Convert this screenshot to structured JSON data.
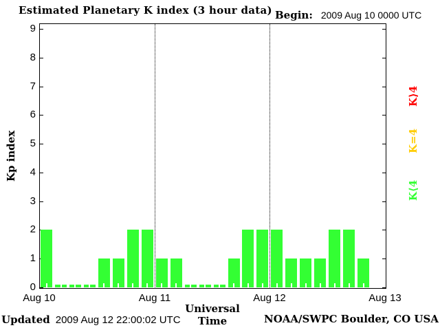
{
  "title": "Estimated Planetary K index (3 hour data)",
  "begin": {
    "label": "Begin:",
    "value": "2009 Aug 10 0000 UTC"
  },
  "footer": {
    "updated_label": "Updated",
    "updated_value": "2009 Aug 12 22:00:02 UTC",
    "credit": "NOAA/SWPC Boulder, CO USA"
  },
  "legend": [
    {
      "label": "K⟩4",
      "color": "#ff0000"
    },
    {
      "label": "K=4",
      "color": "#ffcc00"
    },
    {
      "label": "K⟨4",
      "color": "#33ff33"
    }
  ],
  "chart_data": {
    "type": "bar",
    "title": "Estimated Planetary K index (3 hour data)",
    "xlabel": "Universal Time",
    "ylabel": "Kp index",
    "ylim": [
      0,
      9
    ],
    "y_ticks": [
      0,
      1,
      2,
      3,
      4,
      5,
      6,
      7,
      8,
      9
    ],
    "x_tick_labels": [
      "Aug 10",
      "Aug 11",
      "Aug 12",
      "Aug 13"
    ],
    "interval_hours": 3,
    "slots_per_day": 8,
    "bar_color": "#33ff33",
    "grid": "dotted vertical lines at day boundaries",
    "legend_position": "right, rotated",
    "days": [
      {
        "date": "Aug 10",
        "values": [
          2,
          0,
          0,
          0,
          1,
          1,
          2,
          2
        ]
      },
      {
        "date": "Aug 11",
        "values": [
          1,
          1,
          0,
          0,
          0,
          1,
          2,
          2
        ]
      },
      {
        "date": "Aug 12",
        "values": [
          2,
          1,
          1,
          1,
          2,
          2,
          1
        ]
      }
    ]
  }
}
